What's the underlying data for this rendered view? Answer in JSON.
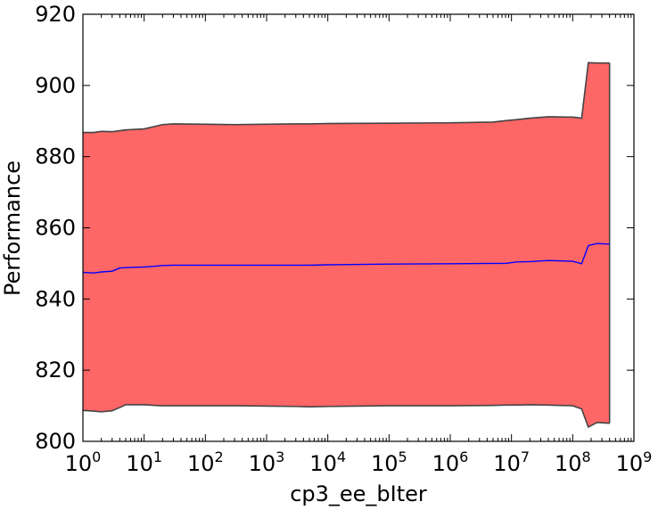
{
  "chart_data": {
    "type": "area",
    "title": "",
    "xlabel": "cp3_ee_bIter",
    "ylabel": "Performance",
    "xscale": "log",
    "xlim": [
      1,
      1000000000
    ],
    "ylim": [
      800,
      920
    ],
    "x_ticks": [
      {
        "value": 1,
        "base": "10",
        "exp": "0"
      },
      {
        "value": 10,
        "base": "10",
        "exp": "1"
      },
      {
        "value": 100,
        "base": "10",
        "exp": "2"
      },
      {
        "value": 1000,
        "base": "10",
        "exp": "3"
      },
      {
        "value": 10000,
        "base": "10",
        "exp": "4"
      },
      {
        "value": 100000,
        "base": "10",
        "exp": "5"
      },
      {
        "value": 1000000,
        "base": "10",
        "exp": "6"
      },
      {
        "value": 10000000,
        "base": "10",
        "exp": "7"
      },
      {
        "value": 100000000,
        "base": "10",
        "exp": "8"
      },
      {
        "value": 1000000000,
        "base": "10",
        "exp": "9"
      }
    ],
    "y_ticks": [
      "800",
      "820",
      "840",
      "860",
      "880",
      "900",
      "920"
    ],
    "grid": false,
    "legend": "none",
    "colors": {
      "band": "#ff6666",
      "band_edge": "#444444",
      "mean": "#0000ff"
    },
    "x": [
      1,
      1.5,
      2,
      3,
      4,
      5,
      10,
      15,
      20,
      30,
      100,
      300,
      1000,
      3000,
      5000,
      10000,
      100000,
      1000000,
      5000000,
      8000000,
      12000000,
      20000000,
      40000000,
      100000000,
      140000000,
      180000000,
      250000000,
      400000000
    ],
    "mean": [
      847.5,
      847.3,
      847.6,
      847.8,
      848.7,
      848.8,
      849.0,
      849.2,
      849.4,
      849.5,
      849.5,
      849.5,
      849.5,
      849.5,
      849.5,
      849.6,
      849.8,
      849.9,
      850.0,
      850.0,
      850.4,
      850.5,
      850.8,
      850.6,
      849.9,
      855.0,
      855.6,
      855.4
    ],
    "upper": [
      886.8,
      886.8,
      887.1,
      887.0,
      887.3,
      887.5,
      887.8,
      888.5,
      889.0,
      889.2,
      889.1,
      889.0,
      889.1,
      889.2,
      889.2,
      889.3,
      889.4,
      889.5,
      889.7,
      890.1,
      890.4,
      890.8,
      891.2,
      891.1,
      890.8,
      906.4,
      906.3,
      906.3
    ],
    "lower": [
      808.7,
      808.5,
      808.3,
      808.6,
      809.5,
      810.3,
      810.3,
      810.1,
      810.0,
      810.0,
      810.0,
      810.0,
      809.9,
      809.8,
      809.7,
      809.8,
      810.0,
      810.0,
      810.1,
      810.2,
      810.2,
      810.3,
      810.2,
      810.0,
      809.1,
      804.0,
      805.3,
      805.1
    ]
  }
}
